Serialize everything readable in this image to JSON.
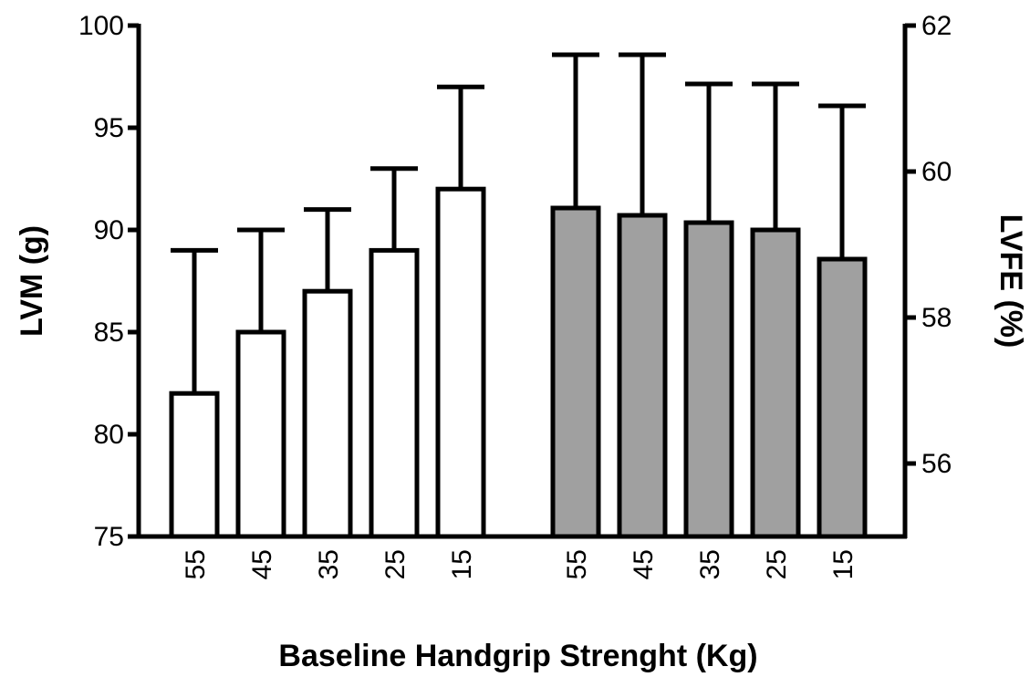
{
  "chart_data": {
    "type": "bar",
    "xlabel": "Baseline Handgrip Strenght (Kg)",
    "ylabel_left": "LVM (g)",
    "ylabel_right": "LVFE (%)",
    "grid": false,
    "legend": "none",
    "ylim_left": [
      75,
      100
    ],
    "yticks_left": [
      75,
      80,
      85,
      90,
      95,
      100
    ],
    "ylim_right": [
      55,
      62
    ],
    "yticks_right": [
      56,
      58,
      60,
      62
    ],
    "series": [
      {
        "axis": "left",
        "color": "#ffffff",
        "categories": [
          "55",
          "45",
          "35",
          "25",
          "15"
        ],
        "values": [
          82,
          85,
          87,
          89,
          92
        ],
        "error_upper": [
          89,
          90,
          91,
          93,
          97
        ]
      },
      {
        "axis": "right",
        "color": "#a0a0a0",
        "categories": [
          "55",
          "45",
          "35",
          "25",
          "15"
        ],
        "values": [
          59.5,
          59.4,
          59.3,
          59.2,
          58.8
        ],
        "error_upper": [
          61.6,
          61.6,
          61.2,
          61.2,
          60.9
        ]
      }
    ]
  }
}
